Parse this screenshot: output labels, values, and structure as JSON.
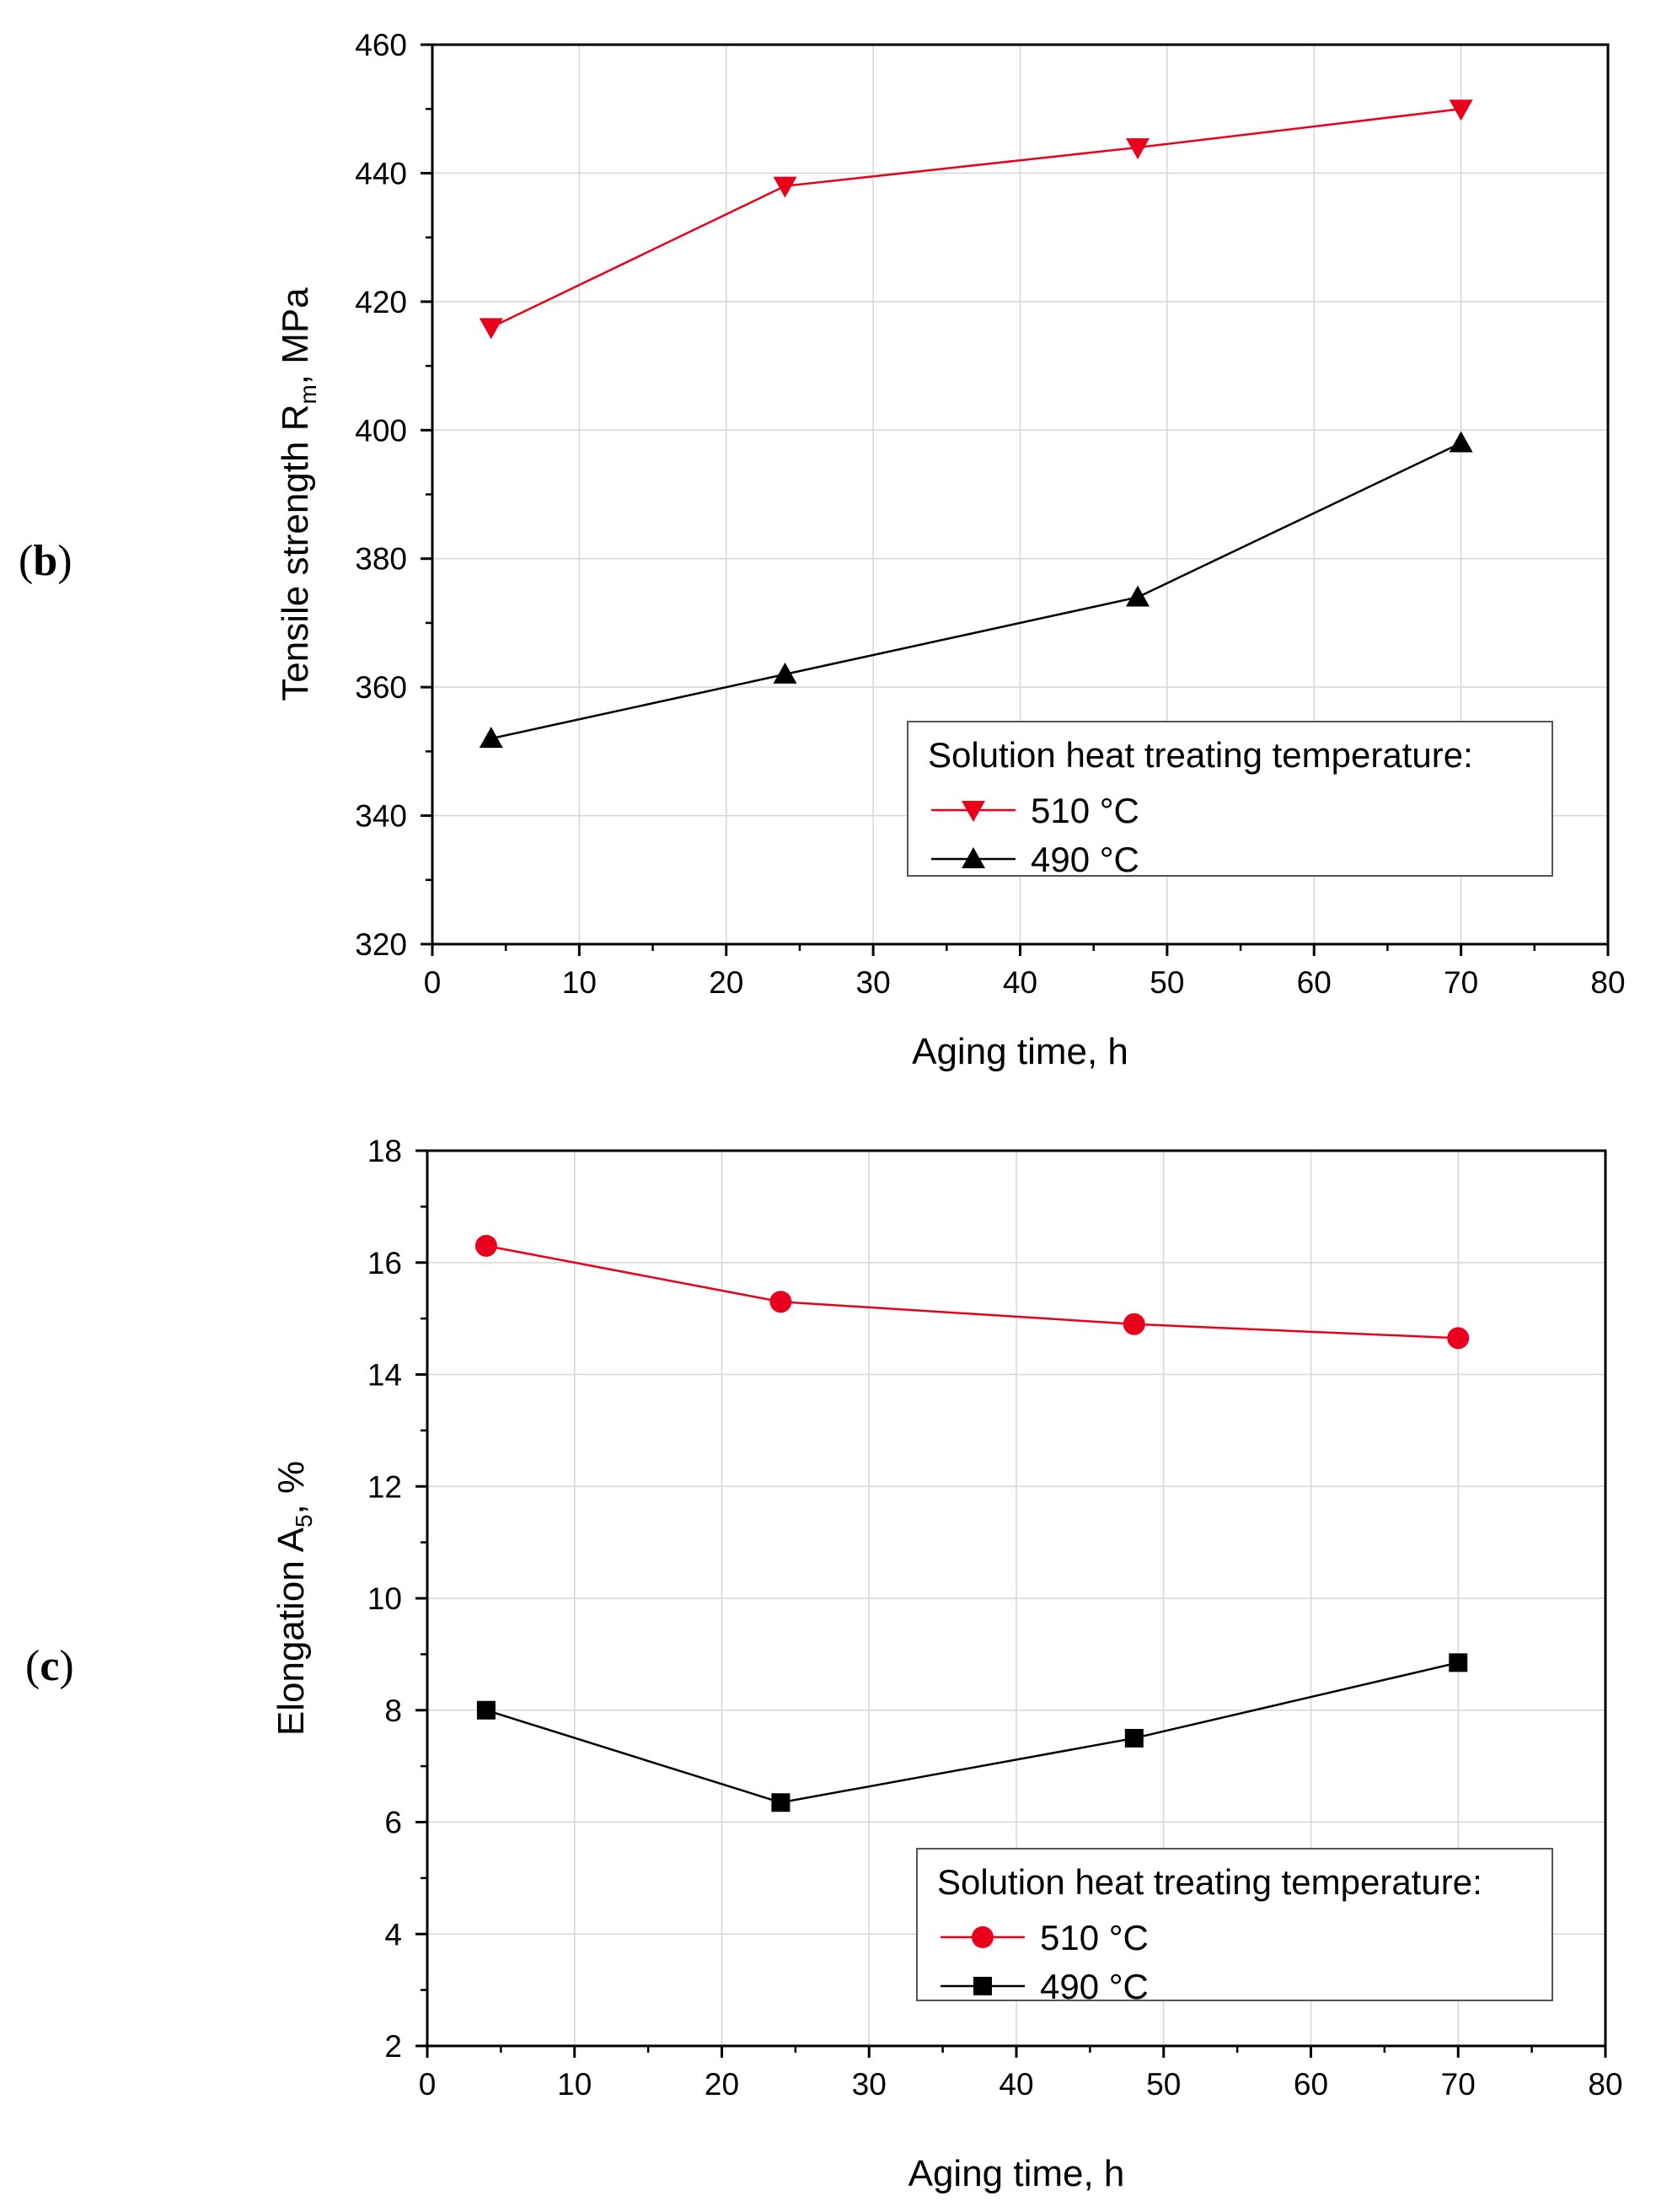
{
  "chart_data": [
    {
      "type": "line",
      "panel_label": "b",
      "title": "",
      "xlabel": "Aging time, h",
      "ylabel": {
        "main": "Tensile strength R",
        "sub": "m",
        "tail": ", MPa"
      },
      "xlim": [
        0,
        80
      ],
      "ylim": [
        320,
        460
      ],
      "xticks": [
        0,
        10,
        20,
        30,
        40,
        50,
        60,
        70,
        80
      ],
      "yticks": [
        320,
        340,
        360,
        380,
        400,
        420,
        440,
        460
      ],
      "grid": true,
      "legend": {
        "title": "Solution heat treating temperature:",
        "placement": "bottom-right"
      },
      "series": [
        {
          "name": "510 °C",
          "color": "#e8001c",
          "marker": "triangle-down",
          "x": [
            4,
            24,
            48,
            70
          ],
          "y": [
            416,
            438,
            444,
            450
          ]
        },
        {
          "name": "490 °C",
          "color": "#000000",
          "marker": "triangle-up",
          "x": [
            4,
            24,
            48,
            70
          ],
          "y": [
            352,
            362,
            374,
            398
          ]
        }
      ]
    },
    {
      "type": "line",
      "panel_label": "c",
      "title": "",
      "xlabel": "Aging time, h",
      "ylabel": {
        "main": "Elongation A",
        "sub": "5",
        "tail": ", %"
      },
      "xlim": [
        0,
        80
      ],
      "ylim": [
        2,
        18
      ],
      "xticks": [
        0,
        10,
        20,
        30,
        40,
        50,
        60,
        70,
        80
      ],
      "yticks": [
        2,
        4,
        6,
        8,
        10,
        12,
        14,
        16,
        18
      ],
      "grid": true,
      "legend": {
        "title": "Solution heat treating temperature:",
        "placement": "bottom-right"
      },
      "series": [
        {
          "name": "510 °C",
          "color": "#e8001c",
          "marker": "circle",
          "x": [
            4,
            24,
            48,
            70
          ],
          "y": [
            16.3,
            15.3,
            14.9,
            14.65
          ]
        },
        {
          "name": "490 °C",
          "color": "#000000",
          "marker": "square",
          "x": [
            4,
            24,
            48,
            70
          ],
          "y": [
            8.0,
            6.35,
            7.5,
            8.85
          ]
        }
      ]
    }
  ]
}
